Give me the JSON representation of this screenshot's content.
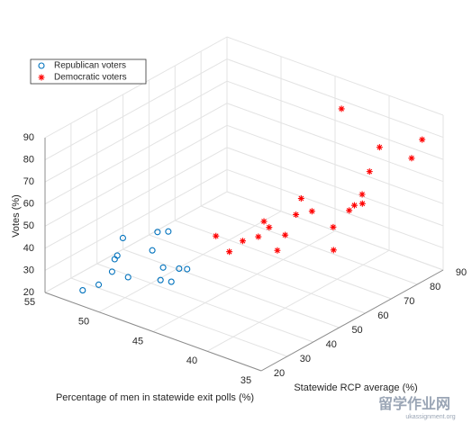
{
  "chart_data": {
    "type": "scatter3d",
    "xlabel": "Percentage of men in statewide exit polls (%)",
    "ylabel": "Statewide RCP average (%)",
    "zlabel": "Votes (%)",
    "xlim": [
      35,
      55
    ],
    "xticks": [
      35,
      40,
      45,
      50,
      55
    ],
    "ylim": [
      20,
      90
    ],
    "yticks": [
      20,
      30,
      40,
      50,
      60,
      70,
      80,
      90
    ],
    "zlim": [
      20,
      90
    ],
    "zticks": [
      20,
      30,
      40,
      50,
      60,
      70,
      80,
      90
    ],
    "grid": true,
    "legend": "top-left",
    "series": [
      {
        "name": "Republican voters",
        "color": "#0072bd",
        "marker": "circle",
        "x": [
          52,
          51,
          49,
          50,
          50,
          50,
          49,
          47,
          47,
          46,
          46,
          45,
          45,
          44.5,
          46
        ],
        "y": [
          22,
          24,
          27,
          25,
          26,
          27,
          25,
          28,
          30,
          28,
          27,
          27,
          30,
          31,
          30
        ],
        "z": [
          25,
          28,
          33,
          35,
          40,
          41,
          52,
          48,
          55,
          42,
          37,
          38,
          42,
          42,
          57
        ]
      },
      {
        "name": "Democratic voters",
        "color": "#ff0000",
        "marker": "asterisk",
        "x": [
          44,
          43,
          42,
          42,
          41,
          41,
          40,
          40,
          39,
          38,
          39,
          36,
          37,
          36,
          36,
          35.5,
          36,
          37,
          38,
          36,
          42,
          35.5
        ],
        "y": [
          40,
          41,
          42,
          48,
          46,
          48,
          50,
          47,
          50,
          52,
          52,
          52,
          56,
          58,
          60,
          61,
          63,
          70,
          78,
          82,
          80,
          84
        ],
        "z": [
          52,
          46,
          52,
          50,
          60,
          56,
          53,
          48,
          64,
          66,
          70,
          52,
          58,
          66,
          67,
          68,
          70,
          74,
          78,
          74,
          87,
          82
        ]
      }
    ]
  },
  "watermark": {
    "title": "留学作业网",
    "url": "ukassignment.org"
  }
}
